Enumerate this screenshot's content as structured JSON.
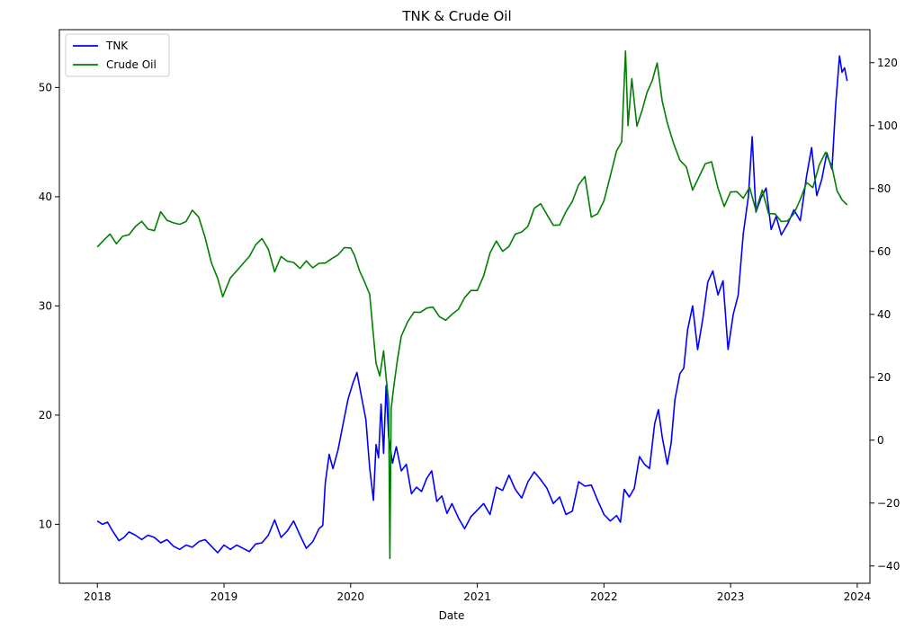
{
  "chart_data": {
    "type": "line",
    "title": "TNK & Crude Oil",
    "xlabel": "Date",
    "ylabel_left": "",
    "ylabel_right": "",
    "x_ticks": [
      "2018",
      "2019",
      "2020",
      "2021",
      "2022",
      "2023",
      "2024"
    ],
    "x_range": [
      2017.7,
      2024.1
    ],
    "y_left_ticks": [
      10,
      20,
      30,
      40,
      50
    ],
    "y_left_range": [
      4.6,
      55.3
    ],
    "y_right_ticks": [
      -40,
      -20,
      0,
      20,
      40,
      60,
      80,
      100,
      120
    ],
    "y_right_range": [
      -45.5,
      130.5
    ],
    "grid": false,
    "legend_position": "upper left",
    "series": [
      {
        "name": "TNK",
        "axis": "left",
        "color": "#0000ff",
        "points": [
          [
            2018.0,
            10.3
          ],
          [
            2018.04,
            10.0
          ],
          [
            2018.08,
            10.2
          ],
          [
            2018.12,
            9.4
          ],
          [
            2018.17,
            8.5
          ],
          [
            2018.21,
            8.8
          ],
          [
            2018.25,
            9.3
          ],
          [
            2018.3,
            9.0
          ],
          [
            2018.35,
            8.6
          ],
          [
            2018.4,
            9.0
          ],
          [
            2018.45,
            8.8
          ],
          [
            2018.5,
            8.3
          ],
          [
            2018.55,
            8.6
          ],
          [
            2018.6,
            8.0
          ],
          [
            2018.65,
            7.7
          ],
          [
            2018.7,
            8.1
          ],
          [
            2018.75,
            7.9
          ],
          [
            2018.8,
            8.4
          ],
          [
            2018.85,
            8.6
          ],
          [
            2018.9,
            8.0
          ],
          [
            2018.95,
            7.4
          ],
          [
            2019.0,
            8.1
          ],
          [
            2019.05,
            7.7
          ],
          [
            2019.1,
            8.1
          ],
          [
            2019.15,
            7.8
          ],
          [
            2019.2,
            7.5
          ],
          [
            2019.25,
            8.2
          ],
          [
            2019.3,
            8.3
          ],
          [
            2019.35,
            9.0
          ],
          [
            2019.4,
            10.4
          ],
          [
            2019.45,
            8.8
          ],
          [
            2019.5,
            9.4
          ],
          [
            2019.55,
            10.3
          ],
          [
            2019.6,
            9.0
          ],
          [
            2019.65,
            7.8
          ],
          [
            2019.7,
            8.4
          ],
          [
            2019.75,
            9.6
          ],
          [
            2019.78,
            9.9
          ],
          [
            2019.8,
            13.8
          ],
          [
            2019.83,
            16.4
          ],
          [
            2019.86,
            15.1
          ],
          [
            2019.9,
            16.8
          ],
          [
            2019.94,
            19.2
          ],
          [
            2019.98,
            21.5
          ],
          [
            2020.02,
            23.0
          ],
          [
            2020.05,
            23.9
          ],
          [
            2020.08,
            22.0
          ],
          [
            2020.12,
            19.6
          ],
          [
            2020.15,
            15.2
          ],
          [
            2020.18,
            12.2
          ],
          [
            2020.2,
            17.3
          ],
          [
            2020.22,
            16.1
          ],
          [
            2020.24,
            21.0
          ],
          [
            2020.26,
            16.5
          ],
          [
            2020.28,
            22.7
          ],
          [
            2020.3,
            18.0
          ],
          [
            2020.33,
            15.6
          ],
          [
            2020.36,
            17.1
          ],
          [
            2020.4,
            14.9
          ],
          [
            2020.44,
            15.5
          ],
          [
            2020.48,
            12.8
          ],
          [
            2020.52,
            13.4
          ],
          [
            2020.56,
            13.0
          ],
          [
            2020.6,
            14.2
          ],
          [
            2020.64,
            14.9
          ],
          [
            2020.68,
            12.1
          ],
          [
            2020.72,
            12.6
          ],
          [
            2020.76,
            11.0
          ],
          [
            2020.8,
            11.9
          ],
          [
            2020.85,
            10.6
          ],
          [
            2020.9,
            9.6
          ],
          [
            2020.95,
            10.7
          ],
          [
            2021.0,
            11.3
          ],
          [
            2021.05,
            11.9
          ],
          [
            2021.1,
            10.9
          ],
          [
            2021.15,
            13.4
          ],
          [
            2021.2,
            13.1
          ],
          [
            2021.25,
            14.5
          ],
          [
            2021.3,
            13.2
          ],
          [
            2021.35,
            12.4
          ],
          [
            2021.4,
            13.9
          ],
          [
            2021.45,
            14.8
          ],
          [
            2021.5,
            14.1
          ],
          [
            2021.55,
            13.3
          ],
          [
            2021.6,
            11.9
          ],
          [
            2021.65,
            12.5
          ],
          [
            2021.7,
            10.9
          ],
          [
            2021.75,
            11.2
          ],
          [
            2021.8,
            13.9
          ],
          [
            2021.85,
            13.5
          ],
          [
            2021.9,
            13.6
          ],
          [
            2021.95,
            12.2
          ],
          [
            2022.0,
            10.9
          ],
          [
            2022.05,
            10.3
          ],
          [
            2022.1,
            10.8
          ],
          [
            2022.13,
            10.2
          ],
          [
            2022.16,
            13.2
          ],
          [
            2022.2,
            12.5
          ],
          [
            2022.24,
            13.3
          ],
          [
            2022.28,
            16.2
          ],
          [
            2022.32,
            15.5
          ],
          [
            2022.36,
            15.1
          ],
          [
            2022.4,
            19.2
          ],
          [
            2022.43,
            20.5
          ],
          [
            2022.46,
            18.0
          ],
          [
            2022.5,
            15.5
          ],
          [
            2022.53,
            17.4
          ],
          [
            2022.56,
            21.4
          ],
          [
            2022.6,
            23.8
          ],
          [
            2022.63,
            24.3
          ],
          [
            2022.66,
            27.8
          ],
          [
            2022.7,
            30.0
          ],
          [
            2022.74,
            26.0
          ],
          [
            2022.78,
            28.8
          ],
          [
            2022.82,
            32.2
          ],
          [
            2022.86,
            33.2
          ],
          [
            2022.9,
            31.0
          ],
          [
            2022.94,
            32.3
          ],
          [
            2022.98,
            26.0
          ],
          [
            2023.02,
            29.2
          ],
          [
            2023.06,
            31.0
          ],
          [
            2023.1,
            36.6
          ],
          [
            2023.14,
            40.0
          ],
          [
            2023.17,
            45.5
          ],
          [
            2023.2,
            38.6
          ],
          [
            2023.24,
            39.9
          ],
          [
            2023.28,
            40.8
          ],
          [
            2023.32,
            37.0
          ],
          [
            2023.36,
            38.2
          ],
          [
            2023.4,
            36.5
          ],
          [
            2023.45,
            37.5
          ],
          [
            2023.5,
            38.8
          ],
          [
            2023.55,
            37.8
          ],
          [
            2023.6,
            41.9
          ],
          [
            2023.64,
            44.5
          ],
          [
            2023.68,
            40.1
          ],
          [
            2023.72,
            41.6
          ],
          [
            2023.76,
            44.0
          ],
          [
            2023.8,
            42.5
          ],
          [
            2023.83,
            48.5
          ],
          [
            2023.86,
            52.9
          ],
          [
            2023.88,
            51.4
          ],
          [
            2023.9,
            51.8
          ],
          [
            2023.92,
            50.6
          ]
        ]
      },
      {
        "name": "Crude Oil",
        "axis": "right",
        "color": "#008000",
        "points": [
          [
            2018.0,
            61.4
          ],
          [
            2018.05,
            63.6
          ],
          [
            2018.1,
            65.5
          ],
          [
            2018.15,
            62.4
          ],
          [
            2018.2,
            64.8
          ],
          [
            2018.25,
            65.3
          ],
          [
            2018.3,
            67.9
          ],
          [
            2018.35,
            69.6
          ],
          [
            2018.4,
            67.1
          ],
          [
            2018.45,
            66.6
          ],
          [
            2018.5,
            72.6
          ],
          [
            2018.55,
            69.9
          ],
          [
            2018.6,
            69.1
          ],
          [
            2018.65,
            68.6
          ],
          [
            2018.7,
            69.5
          ],
          [
            2018.75,
            73.1
          ],
          [
            2018.8,
            70.9
          ],
          [
            2018.85,
            64.5
          ],
          [
            2018.9,
            56.5
          ],
          [
            2018.95,
            51.4
          ],
          [
            2018.99,
            45.6
          ],
          [
            2019.05,
            51.6
          ],
          [
            2019.1,
            53.8
          ],
          [
            2019.15,
            56.1
          ],
          [
            2019.2,
            58.4
          ],
          [
            2019.25,
            62.1
          ],
          [
            2019.3,
            64.1
          ],
          [
            2019.35,
            60.7
          ],
          [
            2019.4,
            53.5
          ],
          [
            2019.45,
            58.4
          ],
          [
            2019.5,
            56.9
          ],
          [
            2019.55,
            56.5
          ],
          [
            2019.6,
            54.6
          ],
          [
            2019.65,
            57.0
          ],
          [
            2019.7,
            54.8
          ],
          [
            2019.75,
            56.2
          ],
          [
            2019.8,
            56.3
          ],
          [
            2019.85,
            57.7
          ],
          [
            2019.9,
            58.9
          ],
          [
            2019.95,
            61.2
          ],
          [
            2020.0,
            61.1
          ],
          [
            2020.03,
            58.8
          ],
          [
            2020.07,
            53.8
          ],
          [
            2020.1,
            51.2
          ],
          [
            2020.15,
            46.4
          ],
          [
            2020.18,
            33.3
          ],
          [
            2020.2,
            24.4
          ],
          [
            2020.23,
            20.4
          ],
          [
            2020.26,
            28.4
          ],
          [
            2020.28,
            19.9
          ],
          [
            2020.3,
            12.3
          ],
          [
            2020.31,
            -37.6
          ],
          [
            2020.32,
            10.0
          ],
          [
            2020.34,
            17.0
          ],
          [
            2020.37,
            25.8
          ],
          [
            2020.4,
            33.1
          ],
          [
            2020.45,
            37.6
          ],
          [
            2020.5,
            40.7
          ],
          [
            2020.55,
            40.6
          ],
          [
            2020.6,
            42.0
          ],
          [
            2020.65,
            42.3
          ],
          [
            2020.7,
            39.3
          ],
          [
            2020.75,
            38.1
          ],
          [
            2020.8,
            40.0
          ],
          [
            2020.85,
            41.6
          ],
          [
            2020.9,
            45.3
          ],
          [
            2020.95,
            47.6
          ],
          [
            2021.0,
            47.6
          ],
          [
            2021.05,
            52.2
          ],
          [
            2021.1,
            59.5
          ],
          [
            2021.15,
            63.3
          ],
          [
            2021.2,
            60.0
          ],
          [
            2021.25,
            61.6
          ],
          [
            2021.3,
            65.5
          ],
          [
            2021.35,
            66.2
          ],
          [
            2021.4,
            68.0
          ],
          [
            2021.45,
            73.7
          ],
          [
            2021.5,
            75.2
          ],
          [
            2021.55,
            71.7
          ],
          [
            2021.6,
            68.3
          ],
          [
            2021.65,
            68.4
          ],
          [
            2021.7,
            72.6
          ],
          [
            2021.75,
            75.9
          ],
          [
            2021.8,
            81.2
          ],
          [
            2021.85,
            83.8
          ],
          [
            2021.9,
            70.9
          ],
          [
            2021.95,
            72.0
          ],
          [
            2022.0,
            76.1
          ],
          [
            2022.05,
            84.0
          ],
          [
            2022.1,
            92.0
          ],
          [
            2022.14,
            94.8
          ],
          [
            2022.17,
            123.7
          ],
          [
            2022.19,
            100.0
          ],
          [
            2022.22,
            114.9
          ],
          [
            2022.26,
            99.8
          ],
          [
            2022.3,
            104.7
          ],
          [
            2022.34,
            110.5
          ],
          [
            2022.38,
            114.2
          ],
          [
            2022.42,
            119.9
          ],
          [
            2022.46,
            107.8
          ],
          [
            2022.5,
            100.8
          ],
          [
            2022.55,
            94.3
          ],
          [
            2022.6,
            89.0
          ],
          [
            2022.65,
            86.9
          ],
          [
            2022.7,
            79.5
          ],
          [
            2022.75,
            83.6
          ],
          [
            2022.8,
            87.9
          ],
          [
            2022.85,
            88.5
          ],
          [
            2022.9,
            80.1
          ],
          [
            2022.95,
            74.3
          ],
          [
            2023.0,
            78.9
          ],
          [
            2023.05,
            79.0
          ],
          [
            2023.1,
            76.9
          ],
          [
            2023.15,
            80.4
          ],
          [
            2023.2,
            73.0
          ],
          [
            2023.25,
            79.5
          ],
          [
            2023.3,
            72.0
          ],
          [
            2023.35,
            72.0
          ],
          [
            2023.4,
            69.5
          ],
          [
            2023.45,
            69.7
          ],
          [
            2023.5,
            72.0
          ],
          [
            2023.55,
            76.5
          ],
          [
            2023.6,
            81.9
          ],
          [
            2023.65,
            80.3
          ],
          [
            2023.7,
            87.5
          ],
          [
            2023.75,
            91.5
          ],
          [
            2023.8,
            86.9
          ],
          [
            2023.84,
            79.3
          ],
          [
            2023.88,
            76.4
          ],
          [
            2023.92,
            74.8
          ]
        ]
      }
    ]
  }
}
